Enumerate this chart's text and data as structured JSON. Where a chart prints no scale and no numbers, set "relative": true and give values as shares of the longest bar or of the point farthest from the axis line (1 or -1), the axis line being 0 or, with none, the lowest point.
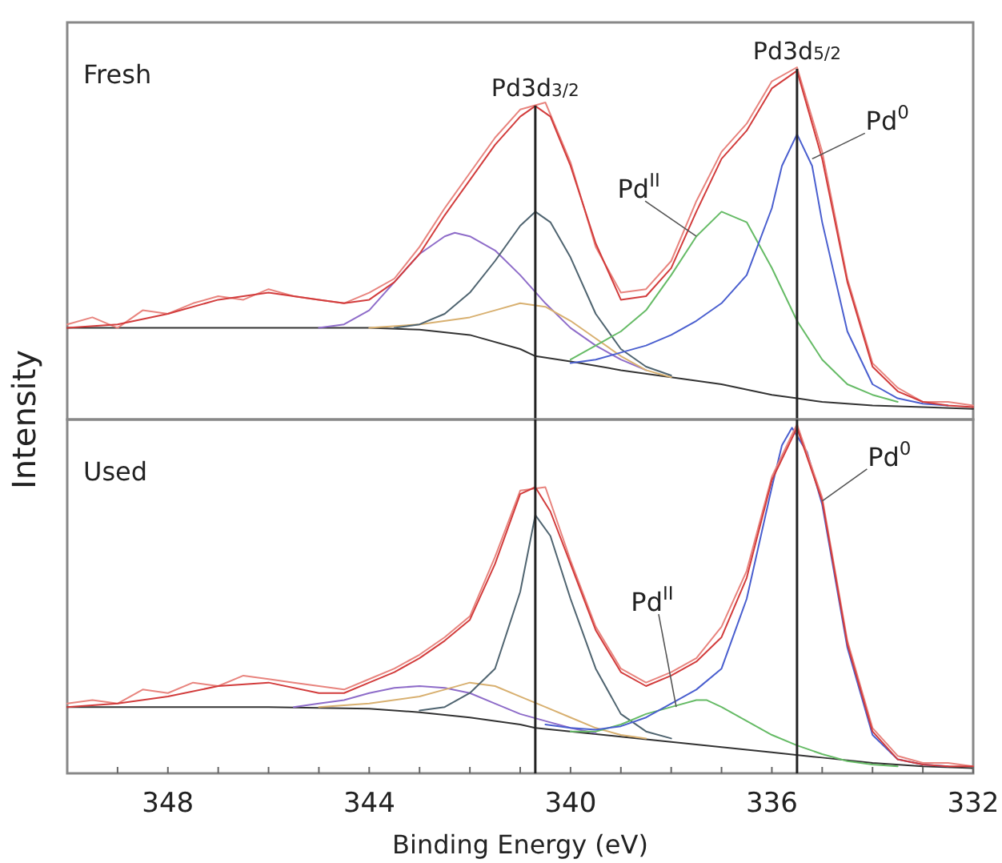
{
  "chart_data": [
    {
      "type": "line",
      "title": "Fresh",
      "ylabel": "Intensity",
      "relative": true,
      "xlim": [
        350,
        332
      ],
      "tick_labels": false,
      "ref_lines": [
        {
          "axis": "x",
          "value": 340.7,
          "label": "Pd3d$_{3/2}$",
          "color": "#222222"
        },
        {
          "axis": "x",
          "value": 335.5,
          "label": "Pd3d$_{5/2}$",
          "color": "#222222"
        }
      ],
      "annotations": [
        {
          "text": "Pd$^{II}$",
          "x": 337.5,
          "y": 0.52
        },
        {
          "text": "Pd$^{0}$",
          "x": 335.2,
          "y": 0.74
        }
      ],
      "series": [
        {
          "color": "#333333",
          "x": [
            350,
            348,
            346,
            344,
            343,
            342,
            341,
            340.7,
            340,
            339,
            338,
            337,
            336,
            335.5,
            335,
            334,
            333,
            332
          ],
          "values": [
            0.26,
            0.26,
            0.26,
            0.26,
            0.255,
            0.24,
            0.2,
            0.18,
            0.165,
            0.14,
            0.12,
            0.1,
            0.07,
            0.06,
            0.05,
            0.04,
            0.035,
            0.03
          ]
        },
        {
          "color": "#8e6cc9",
          "x": [
            345,
            344.5,
            344,
            343.5,
            343,
            342.5,
            342.3,
            342,
            341.5,
            341,
            340.5,
            340,
            339.5,
            339,
            338.5
          ],
          "values": [
            0.26,
            0.27,
            0.31,
            0.39,
            0.47,
            0.52,
            0.53,
            0.52,
            0.48,
            0.41,
            0.33,
            0.26,
            0.21,
            0.17,
            0.14
          ]
        },
        {
          "color": "#d8b070",
          "x": [
            344,
            343,
            342,
            341.5,
            341,
            340.5,
            340,
            339.5,
            339,
            338.5,
            338
          ],
          "values": [
            0.26,
            0.27,
            0.29,
            0.31,
            0.33,
            0.32,
            0.28,
            0.23,
            0.18,
            0.14,
            0.12
          ]
        },
        {
          "color": "#4f6470",
          "x": [
            343.5,
            343,
            342.5,
            342,
            341.5,
            341,
            340.7,
            340.4,
            340,
            339.5,
            339,
            338.5,
            338
          ],
          "values": [
            0.26,
            0.27,
            0.3,
            0.36,
            0.45,
            0.55,
            0.59,
            0.56,
            0.46,
            0.3,
            0.2,
            0.15,
            0.125
          ]
        },
        {
          "color": "#66bb66",
          "x": [
            340,
            339.5,
            339,
            338.5,
            338,
            337.5,
            337,
            336.5,
            336,
            335.5,
            335,
            334.5,
            334,
            333.5
          ],
          "values": [
            0.17,
            0.21,
            0.25,
            0.31,
            0.41,
            0.52,
            0.59,
            0.56,
            0.43,
            0.28,
            0.17,
            0.1,
            0.07,
            0.05
          ]
        },
        {
          "color": "#4a5fcf",
          "x": [
            340,
            339.5,
            339,
            338.5,
            338,
            337.5,
            337,
            336.5,
            336,
            335.8,
            335.5,
            335.2,
            335,
            334.5,
            334,
            333.5,
            333,
            332.5
          ],
          "values": [
            0.16,
            0.17,
            0.19,
            0.21,
            0.24,
            0.28,
            0.33,
            0.41,
            0.6,
            0.72,
            0.81,
            0.72,
            0.56,
            0.25,
            0.1,
            0.06,
            0.045,
            0.04
          ]
        },
        {
          "color": "#e8847e",
          "x": [
            350,
            349.5,
            349,
            348.5,
            348,
            347.5,
            347,
            346.5,
            346,
            345.5,
            345,
            344.5,
            344,
            343.5,
            343,
            342.5,
            342,
            341.5,
            341,
            340.5,
            340,
            339.5,
            339,
            338.5,
            338,
            337.5,
            337,
            336.5,
            336,
            335.5,
            335,
            334.5,
            334,
            333.5,
            333,
            332.5,
            332
          ],
          "values": [
            0.27,
            0.29,
            0.26,
            0.31,
            0.3,
            0.33,
            0.35,
            0.34,
            0.37,
            0.35,
            0.34,
            0.33,
            0.36,
            0.4,
            0.49,
            0.6,
            0.7,
            0.8,
            0.88,
            0.9,
            0.73,
            0.49,
            0.36,
            0.37,
            0.45,
            0.62,
            0.76,
            0.84,
            0.96,
            1,
            0.76,
            0.4,
            0.16,
            0.09,
            0.05,
            0.05,
            0.04
          ]
        },
        {
          "color": "#d23c3c",
          "x": [
            350,
            349,
            348,
            347,
            346,
            345,
            344.5,
            344,
            343.5,
            343,
            342.5,
            342,
            341.5,
            341,
            340.7,
            340.4,
            340,
            339.5,
            339,
            338.5,
            338,
            337.5,
            337,
            336.5,
            336,
            335.5,
            335,
            334.5,
            334,
            333.5,
            333,
            332.5,
            332
          ],
          "values": [
            0.26,
            0.27,
            0.3,
            0.34,
            0.36,
            0.34,
            0.33,
            0.34,
            0.39,
            0.47,
            0.58,
            0.68,
            0.78,
            0.86,
            0.89,
            0.86,
            0.72,
            0.5,
            0.34,
            0.35,
            0.43,
            0.59,
            0.74,
            0.82,
            0.94,
            0.99,
            0.74,
            0.39,
            0.15,
            0.08,
            0.05,
            0.04,
            0.035
          ]
        }
      ]
    },
    {
      "type": "line",
      "title": "Used",
      "xlabel": "Binding Energy (eV)",
      "relative": true,
      "xlim": [
        350,
        332
      ],
      "tick_labels": "x",
      "xticks": [
        {
          "value": 349,
          "label": null
        },
        348,
        {
          "value": 347,
          "label": null
        },
        {
          "value": 346,
          "label": null
        },
        {
          "value": 345,
          "label": null
        },
        344,
        {
          "value": 343,
          "label": null
        },
        {
          "value": 342,
          "label": null
        },
        {
          "value": 341,
          "label": null
        },
        340,
        {
          "value": 339,
          "label": null
        },
        {
          "value": 338,
          "label": null
        },
        {
          "value": 337,
          "label": null
        },
        336,
        {
          "value": 335,
          "label": null
        },
        {
          "value": 334,
          "label": null
        },
        {
          "value": 333,
          "label": null
        },
        332
      ],
      "ref_lines": [
        {
          "axis": "x",
          "value": 340.7,
          "color": "#222222"
        },
        {
          "axis": "x",
          "value": 335.5,
          "color": "#222222"
        }
      ],
      "annotations": [
        {
          "text": "Pd$^{II}$",
          "x": 337.9,
          "y": 0.19
        },
        {
          "text": "Pd$^{0}$",
          "x": 335,
          "y": 0.78
        }
      ],
      "series": [
        {
          "color": "#333333",
          "x": [
            350,
            348,
            346,
            344,
            343,
            342,
            341,
            340.7,
            340,
            339,
            338,
            337,
            336,
            335,
            334,
            333,
            332
          ],
          "values": [
            0.19,
            0.19,
            0.19,
            0.185,
            0.175,
            0.16,
            0.14,
            0.13,
            0.12,
            0.105,
            0.09,
            0.075,
            0.06,
            0.045,
            0.03,
            0.02,
            0.015
          ]
        },
        {
          "color": "#8e6cc9",
          "x": [
            345.5,
            345,
            344.5,
            344,
            343.5,
            343,
            342.5,
            342,
            341.5,
            341,
            340.5,
            340,
            339.5
          ],
          "values": [
            0.19,
            0.2,
            0.21,
            0.23,
            0.245,
            0.25,
            0.245,
            0.23,
            0.2,
            0.17,
            0.15,
            0.13,
            0.115
          ]
        },
        {
          "color": "#d8b070",
          "x": [
            345,
            344,
            343,
            342.5,
            342,
            341.5,
            341,
            340.5,
            340,
            339.5,
            339,
            338.5
          ],
          "values": [
            0.19,
            0.2,
            0.22,
            0.24,
            0.26,
            0.25,
            0.22,
            0.19,
            0.16,
            0.13,
            0.11,
            0.1
          ]
        },
        {
          "color": "#4f6470",
          "x": [
            343,
            342.5,
            342,
            341.5,
            341,
            340.7,
            340.4,
            340,
            339.5,
            339,
            338.5,
            338
          ],
          "values": [
            0.18,
            0.19,
            0.23,
            0.3,
            0.52,
            0.74,
            0.68,
            0.5,
            0.3,
            0.17,
            0.12,
            0.1
          ]
        },
        {
          "color": "#66bb66",
          "x": [
            340,
            339.5,
            339,
            338.5,
            338,
            337.5,
            337.3,
            337,
            336.5,
            336,
            335.5,
            335,
            334.5,
            334,
            333.5
          ],
          "values": [
            0.12,
            0.12,
            0.14,
            0.17,
            0.19,
            0.21,
            0.21,
            0.19,
            0.15,
            0.11,
            0.08,
            0.055,
            0.035,
            0.025,
            0.02
          ]
        },
        {
          "color": "#4a5fcf",
          "x": [
            340.5,
            340,
            339.5,
            339,
            338.5,
            338,
            337.5,
            337,
            336.5,
            336,
            335.8,
            335.6,
            335.3,
            335,
            334.5,
            334,
            333.5,
            333,
            332.5
          ],
          "values": [
            0.14,
            0.13,
            0.125,
            0.135,
            0.16,
            0.2,
            0.24,
            0.3,
            0.5,
            0.82,
            0.94,
            0.99,
            0.92,
            0.77,
            0.36,
            0.11,
            0.04,
            0.025,
            0.02
          ]
        },
        {
          "color": "#e8847e",
          "x": [
            350,
            349.5,
            349,
            348.5,
            348,
            347.5,
            347,
            346.5,
            346,
            345.5,
            345,
            344.5,
            344,
            343.5,
            343,
            342.5,
            342,
            341.5,
            341,
            340.5,
            340,
            339.5,
            339,
            338.5,
            338,
            337.5,
            337,
            336.5,
            336,
            335.5,
            335,
            334.5,
            334,
            333.5,
            333,
            332.5,
            332
          ],
          "values": [
            0.2,
            0.21,
            0.2,
            0.24,
            0.23,
            0.26,
            0.25,
            0.28,
            0.27,
            0.26,
            0.25,
            0.24,
            0.27,
            0.3,
            0.34,
            0.39,
            0.45,
            0.62,
            0.81,
            0.82,
            0.61,
            0.42,
            0.3,
            0.26,
            0.29,
            0.33,
            0.42,
            0.58,
            0.85,
            1,
            0.79,
            0.38,
            0.13,
            0.05,
            0.03,
            0.03,
            0.02
          ]
        },
        {
          "color": "#d23c3c",
          "x": [
            350,
            349,
            348,
            347,
            346,
            345,
            344.5,
            344,
            343.5,
            343,
            342.5,
            342,
            341.5,
            341,
            340.7,
            340.4,
            340,
            339.5,
            339,
            338.5,
            338,
            337.5,
            337,
            336.5,
            336,
            335.5,
            335,
            334.5,
            334,
            333.5,
            333,
            332.5,
            332
          ],
          "values": [
            0.19,
            0.2,
            0.22,
            0.25,
            0.26,
            0.23,
            0.23,
            0.26,
            0.29,
            0.33,
            0.38,
            0.44,
            0.6,
            0.8,
            0.82,
            0.75,
            0.6,
            0.41,
            0.29,
            0.25,
            0.28,
            0.32,
            0.39,
            0.56,
            0.84,
            0.99,
            0.78,
            0.37,
            0.12,
            0.04,
            0.025,
            0.02,
            0.02
          ]
        }
      ]
    }
  ]
}
